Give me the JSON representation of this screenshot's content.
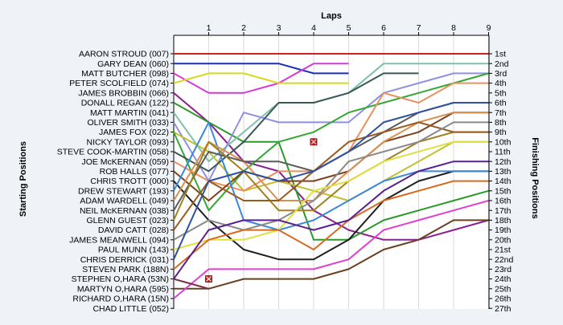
{
  "chart_data": {
    "type": "line",
    "title": "Laps",
    "ylabel_left": "Starting Positions",
    "ylabel_right": "Finishing Positions",
    "x_ticks": [
      1,
      2,
      3,
      4,
      5,
      6,
      7,
      8,
      9
    ],
    "xlim": [
      0,
      9
    ],
    "grid": true,
    "position_labels": [
      "1st",
      "2nd",
      "3rd",
      "4th",
      "5th",
      "6th",
      "7th",
      "8th",
      "9th",
      "10th",
      "11th",
      "12th",
      "13th",
      "14th",
      "15th",
      "16th",
      "17th",
      "18th",
      "19th",
      "20th",
      "21st",
      "22nd",
      "23rd",
      "24th",
      "25th",
      "26th",
      "27th"
    ],
    "drivers": [
      "AARON STROUD (007)",
      "GARY DEAN (060)",
      "MATT BUTCHER (098)",
      "PETER SCOLFIELD (074)",
      "JAMES BROBBIN (066)",
      "DONALL REGAN (122)",
      "MATT MARTIN (041)",
      "OLIVER SMITH (033)",
      "JAMES FOX (022)",
      "NICKY TAYLOR (093)",
      "STEVE COOK-MARTIN (058)",
      "JOE McKERNAN (059)",
      "ROB HALLS (077)",
      "CHRIS TROTT (000)",
      "DREW STEWART (193)",
      "ADAM WARDELL (049)",
      "NEIL McKERNAN (038)",
      "GLENN GUEST (023)",
      "DAVID CATT (028)",
      "JAMES MEANWELL (094)",
      "PAUL MUNN (143)",
      "CHRIS DERRICK (031)",
      "STEVEN PARK (188N)",
      "STEPHEN O,HARA (53N)",
      "MARTYN O,HARA (595)",
      "RICHARD O,HARA (15N)",
      "CHAD LITTLE (052)"
    ],
    "series": [
      {
        "color": "#d22020",
        "positions": [
          1,
          1,
          1,
          1,
          1,
          1,
          1,
          1,
          1,
          1
        ]
      },
      {
        "color": "#1a2fb8",
        "positions": [
          2,
          2,
          2,
          2,
          3,
          3
        ]
      },
      {
        "color": "#d63ad6",
        "positions": [
          3,
          5,
          5,
          4,
          2,
          2
        ]
      },
      {
        "color": "#d8d820",
        "positions": [
          4,
          3,
          3,
          4,
          4,
          4
        ]
      },
      {
        "color": "#8b2090",
        "positions": [
          5,
          8,
          12,
          13,
          17,
          19,
          20,
          20,
          19,
          18
        ]
      },
      {
        "color": "#2a9a2a",
        "positions": [
          6,
          8,
          10,
          10,
          20,
          20,
          18,
          17,
          16,
          15
        ]
      },
      {
        "color": "#7dc2a8",
        "positions": [
          7,
          12,
          9,
          6,
          6,
          5,
          2,
          2,
          2,
          2
        ]
      },
      {
        "color": "#9090e0",
        "positions": [
          8,
          14,
          7,
          8,
          8,
          8,
          5,
          4,
          3,
          3
        ]
      },
      {
        "color": "#c0c030",
        "positions": [
          9,
          11,
          15,
          14,
          15,
          16,
          14,
          12,
          10,
          10
        ]
      },
      {
        "color": "#34a834",
        "positions": [
          9,
          17,
          13,
          10,
          9,
          7,
          6,
          5,
          4,
          3
        ]
      },
      {
        "color": "#3a5858",
        "positions": [
          11,
          13,
          10,
          6,
          6,
          5,
          3,
          3
        ]
      },
      {
        "color": "#e89060",
        "positions": [
          12,
          14,
          15,
          13,
          13,
          11,
          5,
          6,
          4,
          4
        ]
      },
      {
        "color": "#804020",
        "positions": [
          13,
          16,
          13,
          14,
          14,
          13,
          10,
          9,
          7,
          7
        ]
      },
      {
        "color": "#202020",
        "positions": [
          14,
          18,
          21,
          22,
          22,
          20,
          16,
          14,
          13,
          13
        ]
      },
      {
        "color": "#3a88d8",
        "positions": [
          15,
          8,
          18,
          19,
          18,
          16,
          14,
          13,
          13,
          13
        ]
      },
      {
        "color": "#d89050",
        "positions": [
          16,
          10,
          12,
          16,
          16,
          13,
          10,
          8,
          7,
          7
        ]
      },
      {
        "color": "#5a5a5a",
        "positions": [
          17,
          11,
          12,
          12,
          13,
          11,
          9,
          7,
          6,
          6
        ]
      },
      {
        "color": "#a08020",
        "positions": [
          18,
          10,
          13,
          17,
          17,
          14,
          12,
          10,
          9,
          9
        ]
      },
      {
        "color": "#9a5a20",
        "positions": [
          19,
          14,
          16,
          16,
          13,
          10,
          9,
          8,
          9,
          9
        ]
      },
      {
        "color": "#8a8a8a",
        "positions": [
          20,
          18,
          19,
          18,
          16,
          12,
          11,
          10,
          8,
          8
        ]
      },
      {
        "color": "#e0e040",
        "positions": [
          21,
          20,
          20,
          19,
          15,
          14,
          12,
          11,
          10,
          10
        ]
      },
      {
        "color": "#3050a0",
        "positions": [
          22,
          14,
          13,
          14,
          13,
          11,
          8,
          7,
          6,
          6
        ]
      },
      {
        "color": "#d86a20",
        "positions": [
          23,
          20,
          19,
          19,
          21,
          18,
          16,
          15,
          14,
          14
        ]
      },
      {
        "color": "#5a2090",
        "positions": [
          24,
          19,
          18,
          18,
          19,
          18,
          15,
          13,
          12,
          12
        ]
      },
      {
        "color": "#6a4020",
        "positions": [
          25,
          25,
          24,
          24,
          24,
          23,
          21,
          20,
          18,
          18
        ]
      },
      {
        "color": "#e040d0",
        "positions": [
          26,
          23,
          23,
          23,
          23,
          22,
          19,
          18,
          17,
          16
        ]
      },
      {
        "color": "#7a3040",
        "positions": [
          24,
          25
        ]
      }
    ],
    "retirements": [
      {
        "lap": 1,
        "position": 24
      },
      {
        "lap": 4,
        "position": 10
      }
    ]
  }
}
